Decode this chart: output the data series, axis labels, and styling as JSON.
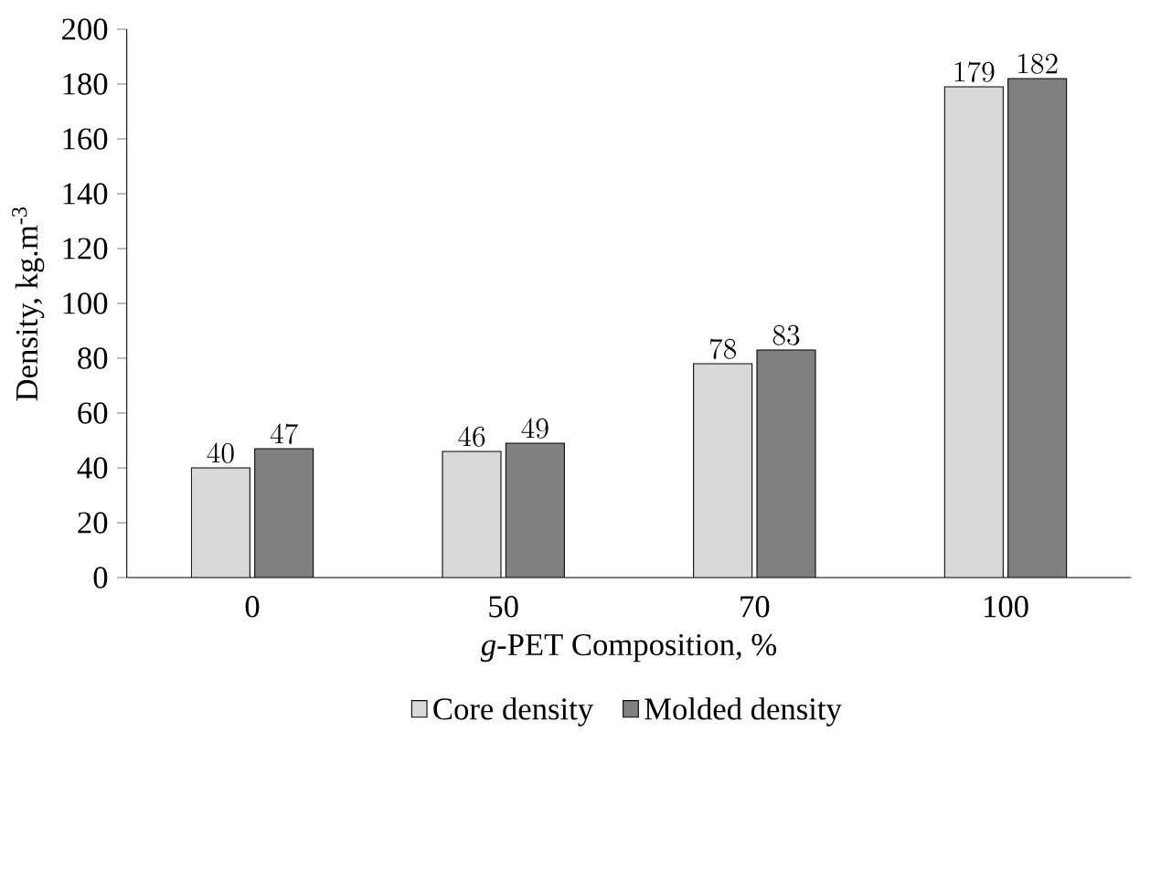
{
  "chart_data": {
    "type": "bar",
    "xlabel": "*g*-PET Composition, %",
    "ylabel": "Density, kg.m$^{-3}$",
    "categories": [
      "0",
      "50",
      "70",
      "100"
    ],
    "series": [
      {
        "name": "Core density",
        "color": "#d9d9d9",
        "values": [
          40,
          46,
          78,
          179
        ]
      },
      {
        "name": "Molded density",
        "color": "#808080",
        "values": [
          47,
          49,
          83,
          182
        ]
      }
    ],
    "ylim": [
      0,
      200
    ],
    "yticks": [
      0,
      20,
      40,
      60,
      80,
      100,
      120,
      140,
      160,
      180,
      200
    ],
    "data_labels": true,
    "legend": "bottom",
    "grid": false
  }
}
